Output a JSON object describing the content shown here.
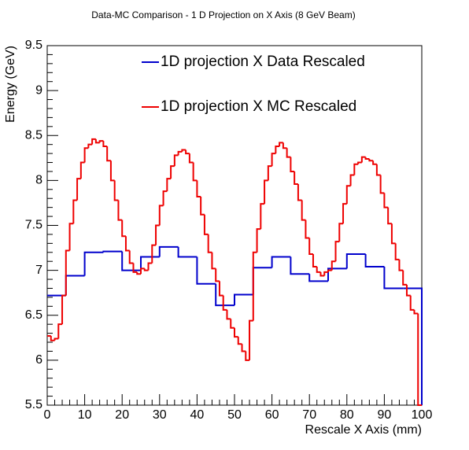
{
  "chart_data": {
    "type": "histogram",
    "title": "Data-MC Comparison - 1 D Projection on X Axis (8 GeV Beam)",
    "xlabel": "Rescale X Axis (mm)",
    "ylabel": "Energy (GeV)",
    "xlim": [
      0,
      100
    ],
    "ylim": [
      5.5,
      9.5
    ],
    "xticks": [
      0,
      10,
      20,
      30,
      40,
      50,
      60,
      70,
      80,
      90,
      100
    ],
    "yticks": [
      5.5,
      6,
      6.5,
      7,
      7.5,
      8,
      8.5,
      9,
      9.5
    ],
    "legend": "top",
    "series": [
      {
        "name": "1D projection X Data Rescaled",
        "color": "#0000cc",
        "bins": [
          0,
          5,
          10,
          15,
          20,
          25,
          30,
          35,
          40,
          45,
          50,
          55,
          60,
          65,
          70,
          75,
          80,
          85,
          90,
          95,
          100
        ],
        "values": [
          6.72,
          6.94,
          7.2,
          7.21,
          7.0,
          7.15,
          7.26,
          7.15,
          6.85,
          6.61,
          6.73,
          7.03,
          7.15,
          6.96,
          6.88,
          7.02,
          7.18,
          7.04,
          6.8,
          6.8
        ]
      },
      {
        "name": "1D projection X MC Rescaled",
        "color": "#ee0000",
        "bins": [
          0,
          1,
          2,
          3,
          4,
          5,
          6,
          7,
          8,
          9,
          10,
          11,
          12,
          13,
          14,
          15,
          16,
          17,
          18,
          19,
          20,
          21,
          22,
          23,
          24,
          25,
          26,
          27,
          28,
          29,
          30,
          31,
          32,
          33,
          34,
          35,
          36,
          37,
          38,
          39,
          40,
          41,
          42,
          43,
          44,
          45,
          46,
          47,
          48,
          49,
          50,
          51,
          52,
          53,
          54,
          55,
          56,
          57,
          58,
          59,
          60,
          61,
          62,
          63,
          64,
          65,
          66,
          67,
          68,
          69,
          70,
          71,
          72,
          73,
          74,
          75,
          76,
          77,
          78,
          79,
          80,
          81,
          82,
          83,
          84,
          85,
          86,
          87,
          88,
          89,
          90,
          91,
          92,
          93,
          94,
          95,
          96,
          97,
          98,
          99,
          100
        ],
        "values": [
          6.27,
          6.22,
          6.24,
          6.4,
          6.72,
          7.22,
          7.52,
          7.78,
          8.02,
          8.2,
          8.36,
          8.4,
          8.46,
          8.42,
          8.44,
          8.38,
          8.22,
          8.0,
          7.78,
          7.56,
          7.38,
          7.22,
          7.08,
          6.98,
          6.96,
          7.02,
          7.0,
          7.08,
          7.28,
          7.5,
          7.72,
          7.88,
          8.02,
          8.16,
          8.28,
          8.32,
          8.34,
          8.3,
          8.2,
          8.0,
          7.82,
          7.62,
          7.4,
          7.2,
          7.02,
          6.88,
          6.72,
          6.56,
          6.46,
          6.36,
          6.26,
          6.18,
          6.1,
          6.0,
          6.44,
          7.2,
          7.46,
          7.74,
          8.0,
          8.16,
          8.3,
          8.38,
          8.42,
          8.36,
          8.26,
          8.1,
          7.96,
          7.78,
          7.56,
          7.36,
          7.18,
          7.04,
          6.98,
          6.94,
          6.98,
          7.0,
          7.1,
          7.32,
          7.52,
          7.74,
          7.94,
          8.06,
          8.18,
          8.2,
          8.26,
          8.24,
          8.22,
          8.18,
          8.06,
          7.86,
          7.7,
          7.52,
          7.3,
          7.12,
          7.0,
          6.84,
          6.72,
          6.56,
          6.52,
          5.5
        ]
      }
    ]
  }
}
